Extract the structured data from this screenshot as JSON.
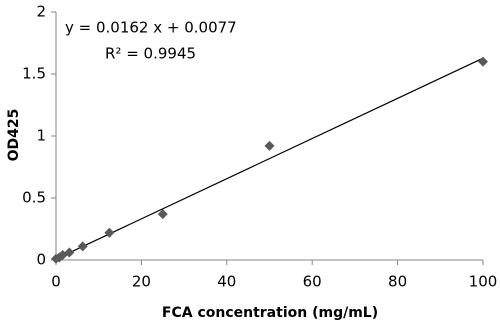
{
  "chart_data": {
    "type": "scatter",
    "x_label": "FCA concentration (mg/mL)",
    "y_label": "OD425",
    "x": [
      0,
      0.78,
      1.56,
      3.125,
      6.25,
      12.5,
      25,
      50,
      100
    ],
    "values": [
      0.01,
      0.02,
      0.04,
      0.06,
      0.11,
      0.22,
      0.37,
      0.92,
      1.6
    ],
    "color": "#595959",
    "xlim": [
      0,
      100
    ],
    "xticks": [
      0,
      20,
      40,
      60,
      80,
      100
    ],
    "ylim": [
      0,
      2
    ],
    "yticks": [
      0,
      0.5,
      1,
      1.5,
      2
    ],
    "grid": false,
    "trendline": {
      "equation": "y = 0.0162 x + 0.0077",
      "r2": "R² = 0.9945",
      "slope": 0.0162,
      "intercept": 0.0077,
      "color": "#000000"
    }
  }
}
